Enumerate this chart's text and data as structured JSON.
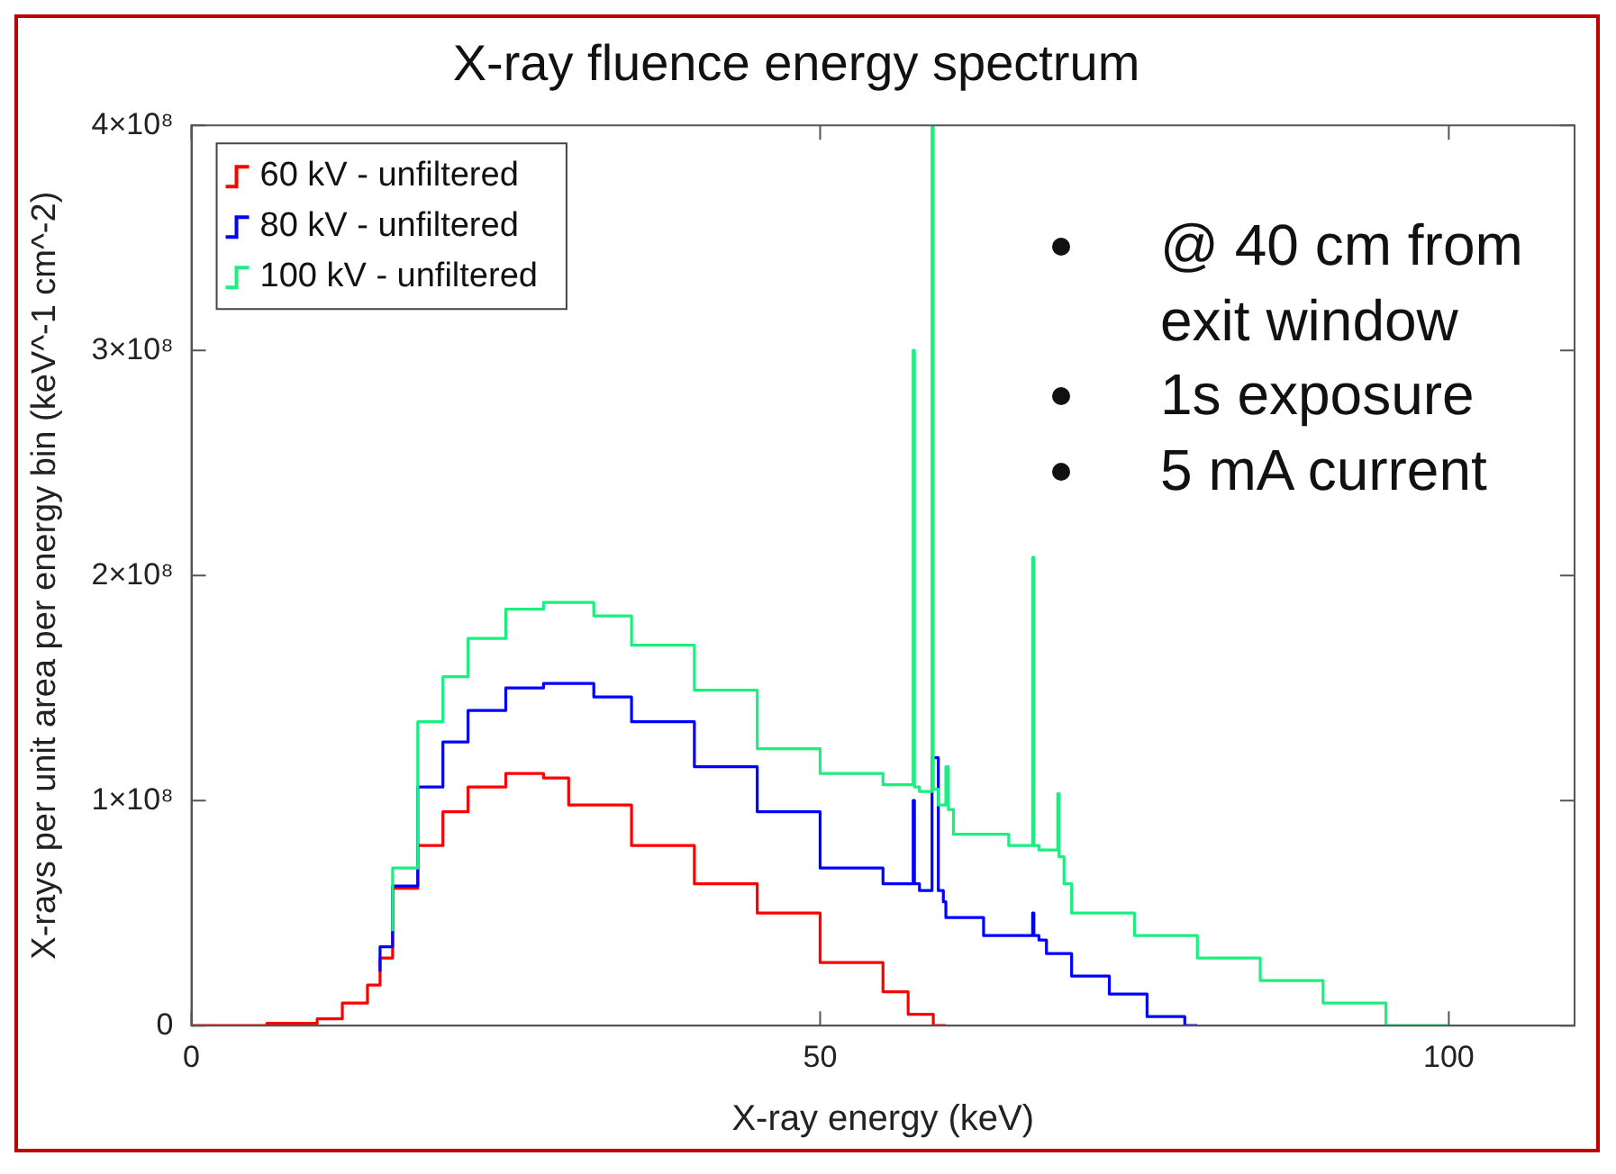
{
  "chart_data": {
    "type": "step",
    "title": "X-ray fluence energy spectrum",
    "xlabel": "X-ray energy (keV)",
    "ylabel": "X-rays per unit area per energy bin (keV^-1 cm^-2)",
    "xlim": [
      0,
      110
    ],
    "xticks": [
      0,
      50,
      100
    ],
    "ylim": [
      0,
      400000000
    ],
    "yticks": [
      {
        "value": 0,
        "label": "0"
      },
      {
        "value": 100000000,
        "label": "1×10⁸"
      },
      {
        "value": 200000000,
        "label": "2×10⁸"
      },
      {
        "value": 300000000,
        "label": "3×10⁸"
      },
      {
        "value": 400000000,
        "label": "4×10⁸"
      }
    ],
    "grid": false,
    "legend": "top left",
    "marker": "none",
    "line_style": "solid",
    "annotations": [
      "@ 40 cm from exit window",
      "1s exposure",
      "5 mA current"
    ],
    "series": [
      {
        "name": "60 kV - unfiltered",
        "color": "#ff0000",
        "x": [
          0,
          6,
          10,
          12,
          14,
          15,
          16,
          18,
          20,
          22,
          25,
          28,
          30,
          35,
          40,
          45,
          50,
          55,
          57,
          59,
          60
        ],
        "values": [
          0,
          0,
          1000000,
          3000000,
          10000000,
          18000000,
          30000000,
          61000000,
          80000000,
          95000000,
          106000000,
          112000000,
          110000000,
          98000000,
          80000000,
          63000000,
          50000000,
          28000000,
          15000000,
          5000000,
          0
        ]
      },
      {
        "name": "80 kV - unfiltered",
        "color": "#0000ff",
        "x": [
          15,
          16,
          18,
          20,
          22,
          25,
          28,
          32,
          35,
          40,
          45,
          50,
          55,
          57.4,
          57.5,
          57.9,
          58.9,
          59.4,
          59.8,
          60,
          63,
          66,
          66.9,
          67,
          67.4,
          68,
          70,
          73,
          76,
          79,
          80
        ],
        "values": [
          24000000,
          35000000,
          62000000,
          106000000,
          126000000,
          140000000,
          150000000,
          152000000,
          146000000,
          135000000,
          115000000,
          95000000,
          70000000,
          63000000,
          100000000,
          63000000,
          60000000,
          119000000,
          60000000,
          55000000,
          48000000,
          40000000,
          40000000,
          50000000,
          40000000,
          38000000,
          32000000,
          22000000,
          14000000,
          4000000,
          0
        ]
      },
      {
        "name": "100 kV - unfiltered",
        "color": "#19f07f",
        "x": [
          16,
          18,
          20,
          22,
          25,
          28,
          32,
          35,
          40,
          45,
          50,
          55,
          57.4,
          57.5,
          57.9,
          58.9,
          59,
          59.4,
          60,
          60.2,
          60.6,
          65,
          66.9,
          67,
          67.4,
          68,
          68.9,
          69,
          69.4,
          70,
          75,
          80,
          85,
          90,
          95,
          100
        ],
        "values": [
          42000000,
          70000000,
          135000000,
          155000000,
          172000000,
          185000000,
          188000000,
          182000000,
          169000000,
          149000000,
          123000000,
          112000000,
          107000000,
          300000000,
          106000000,
          104000000,
          400000000,
          105000000,
          98000000,
          115000000,
          96000000,
          85000000,
          80000000,
          208000000,
          80000000,
          78000000,
          78000000,
          103000000,
          75000000,
          63000000,
          50000000,
          40000000,
          30000000,
          20000000,
          10000000,
          0
        ]
      }
    ]
  }
}
